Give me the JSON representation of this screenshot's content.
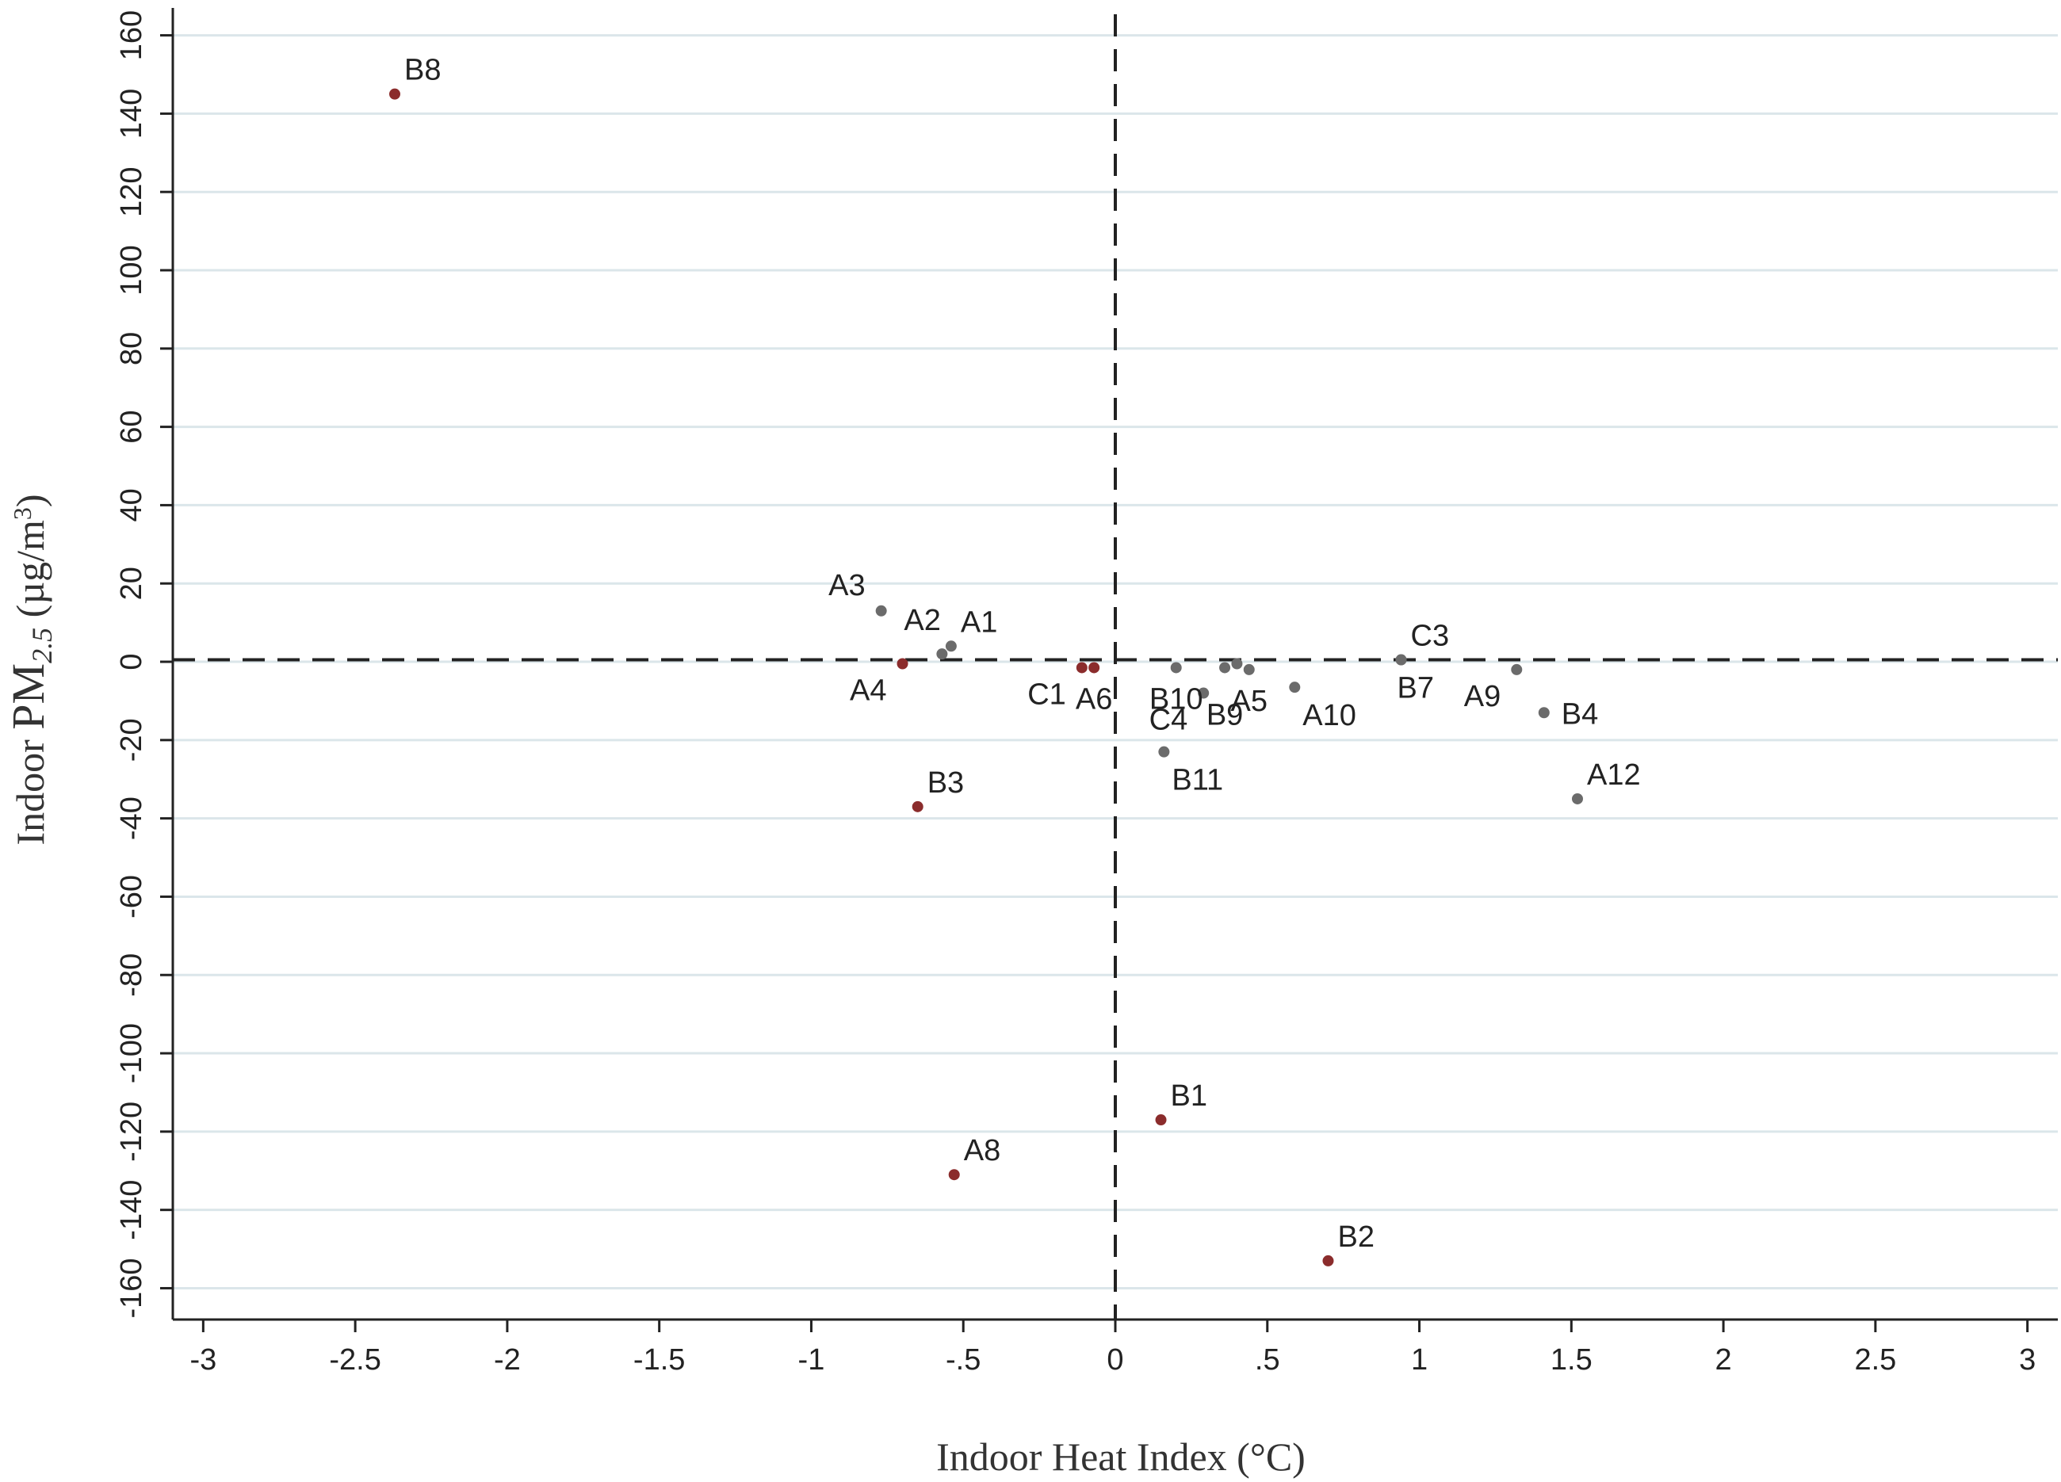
{
  "chart_data": {
    "type": "scatter",
    "xlabel": "Indoor Heat Index (°C)",
    "ylabel_parts": [
      "Indoor ",
      "PM",
      "2.5",
      " (µg/m",
      "3",
      ")"
    ],
    "xlim": [
      -3.1,
      3.1
    ],
    "ylim": [
      -168,
      167
    ],
    "x_ticks": [
      {
        "value": -3,
        "label": "-3"
      },
      {
        "value": -2.5,
        "label": "-2.5"
      },
      {
        "value": -2,
        "label": "-2"
      },
      {
        "value": -1.5,
        "label": "-1.5"
      },
      {
        "value": -1,
        "label": "-1"
      },
      {
        "value": -0.5,
        "label": "-.5"
      },
      {
        "value": 0,
        "label": "0"
      },
      {
        "value": 0.5,
        "label": ".5"
      },
      {
        "value": 1,
        "label": "1"
      },
      {
        "value": 1.5,
        "label": "1.5"
      },
      {
        "value": 2,
        "label": "2"
      },
      {
        "value": 2.5,
        "label": "2.5"
      },
      {
        "value": 3,
        "label": "3"
      }
    ],
    "y_ticks": [
      {
        "value": 160,
        "label": "160"
      },
      {
        "value": 140,
        "label": "140"
      },
      {
        "value": 120,
        "label": "120"
      },
      {
        "value": 100,
        "label": "100"
      },
      {
        "value": 80,
        "label": "80"
      },
      {
        "value": 60,
        "label": "60"
      },
      {
        "value": 40,
        "label": "40"
      },
      {
        "value": 20,
        "label": "20"
      },
      {
        "value": 0,
        "label": "0"
      },
      {
        "value": -20,
        "label": "-20"
      },
      {
        "value": -40,
        "label": "-40"
      },
      {
        "value": -60,
        "label": "-60"
      },
      {
        "value": -80,
        "label": "-80"
      },
      {
        "value": -100,
        "label": "-100"
      },
      {
        "value": -120,
        "label": "-120"
      },
      {
        "value": -140,
        "label": "-140"
      },
      {
        "value": -160,
        "label": "-160"
      }
    ],
    "grid": "horizontal",
    "reference_lines": {
      "x": 0,
      "y": 0.5
    },
    "colors": {
      "highlight": "#8b2c2c",
      "normal": "#6b6b6b",
      "grid": "#dbe6ea",
      "axis": "#222222",
      "refline": "#222222"
    },
    "points": [
      {
        "label": "B8",
        "x": -2.37,
        "y": 145,
        "group": "highlight",
        "pos": "ne"
      },
      {
        "label": "A3",
        "x": -0.77,
        "y": 13,
        "group": "normal",
        "pos": "nw"
      },
      {
        "label": "A2",
        "x": -0.57,
        "y": 2,
        "group": "normal",
        "pos": "ne-high"
      },
      {
        "label": "A1",
        "x": -0.54,
        "y": 4,
        "group": "normal",
        "pos": "ne"
      },
      {
        "label": "A4",
        "x": -0.7,
        "y": -0.5,
        "group": "highlight",
        "pos": "sw"
      },
      {
        "label": "C1",
        "x": -0.11,
        "y": -1.5,
        "group": "highlight",
        "pos": "sw"
      },
      {
        "label": "A6",
        "x": -0.07,
        "y": -1.5,
        "group": "highlight",
        "pos": "s"
      },
      {
        "label": "B10",
        "x": 0.2,
        "y": -1.5,
        "group": "normal",
        "pos": "s"
      },
      {
        "label": "C4",
        "x": 0.29,
        "y": -8,
        "group": "normal",
        "pos": "sw"
      },
      {
        "label": "B9",
        "x": 0.36,
        "y": -1.5,
        "group": "normal",
        "pos": "s-low"
      },
      {
        "label": "A5",
        "x": 0.44,
        "y": -2,
        "group": "normal",
        "pos": "s"
      },
      {
        "label": "",
        "x": 0.4,
        "y": -0.5,
        "group": "normal",
        "pos": "none"
      },
      {
        "label": "A10",
        "x": 0.59,
        "y": -6.5,
        "group": "normal",
        "pos": "se"
      },
      {
        "label": "C3",
        "x": 0.94,
        "y": 0.5,
        "group": "normal",
        "pos": "ne"
      },
      {
        "label": "B7",
        "x": 0.94,
        "y": 0.5,
        "group": "normal",
        "pos": "se-low"
      },
      {
        "label": "A9",
        "x": 1.32,
        "y": -2,
        "group": "normal",
        "pos": "sw"
      },
      {
        "label": "B4",
        "x": 1.41,
        "y": -13,
        "group": "normal",
        "pos": "e"
      },
      {
        "label": "B11",
        "x": 0.16,
        "y": -23,
        "group": "normal",
        "pos": "se"
      },
      {
        "label": "A12",
        "x": 1.52,
        "y": -35,
        "group": "normal",
        "pos": "ne"
      },
      {
        "label": "B3",
        "x": -0.65,
        "y": -37,
        "group": "highlight",
        "pos": "ne"
      },
      {
        "label": "B1",
        "x": 0.15,
        "y": -117,
        "group": "highlight",
        "pos": "ne"
      },
      {
        "label": "A8",
        "x": -0.53,
        "y": -131,
        "group": "highlight",
        "pos": "ne"
      },
      {
        "label": "B2",
        "x": 0.7,
        "y": -153,
        "group": "highlight",
        "pos": "ne"
      }
    ]
  }
}
